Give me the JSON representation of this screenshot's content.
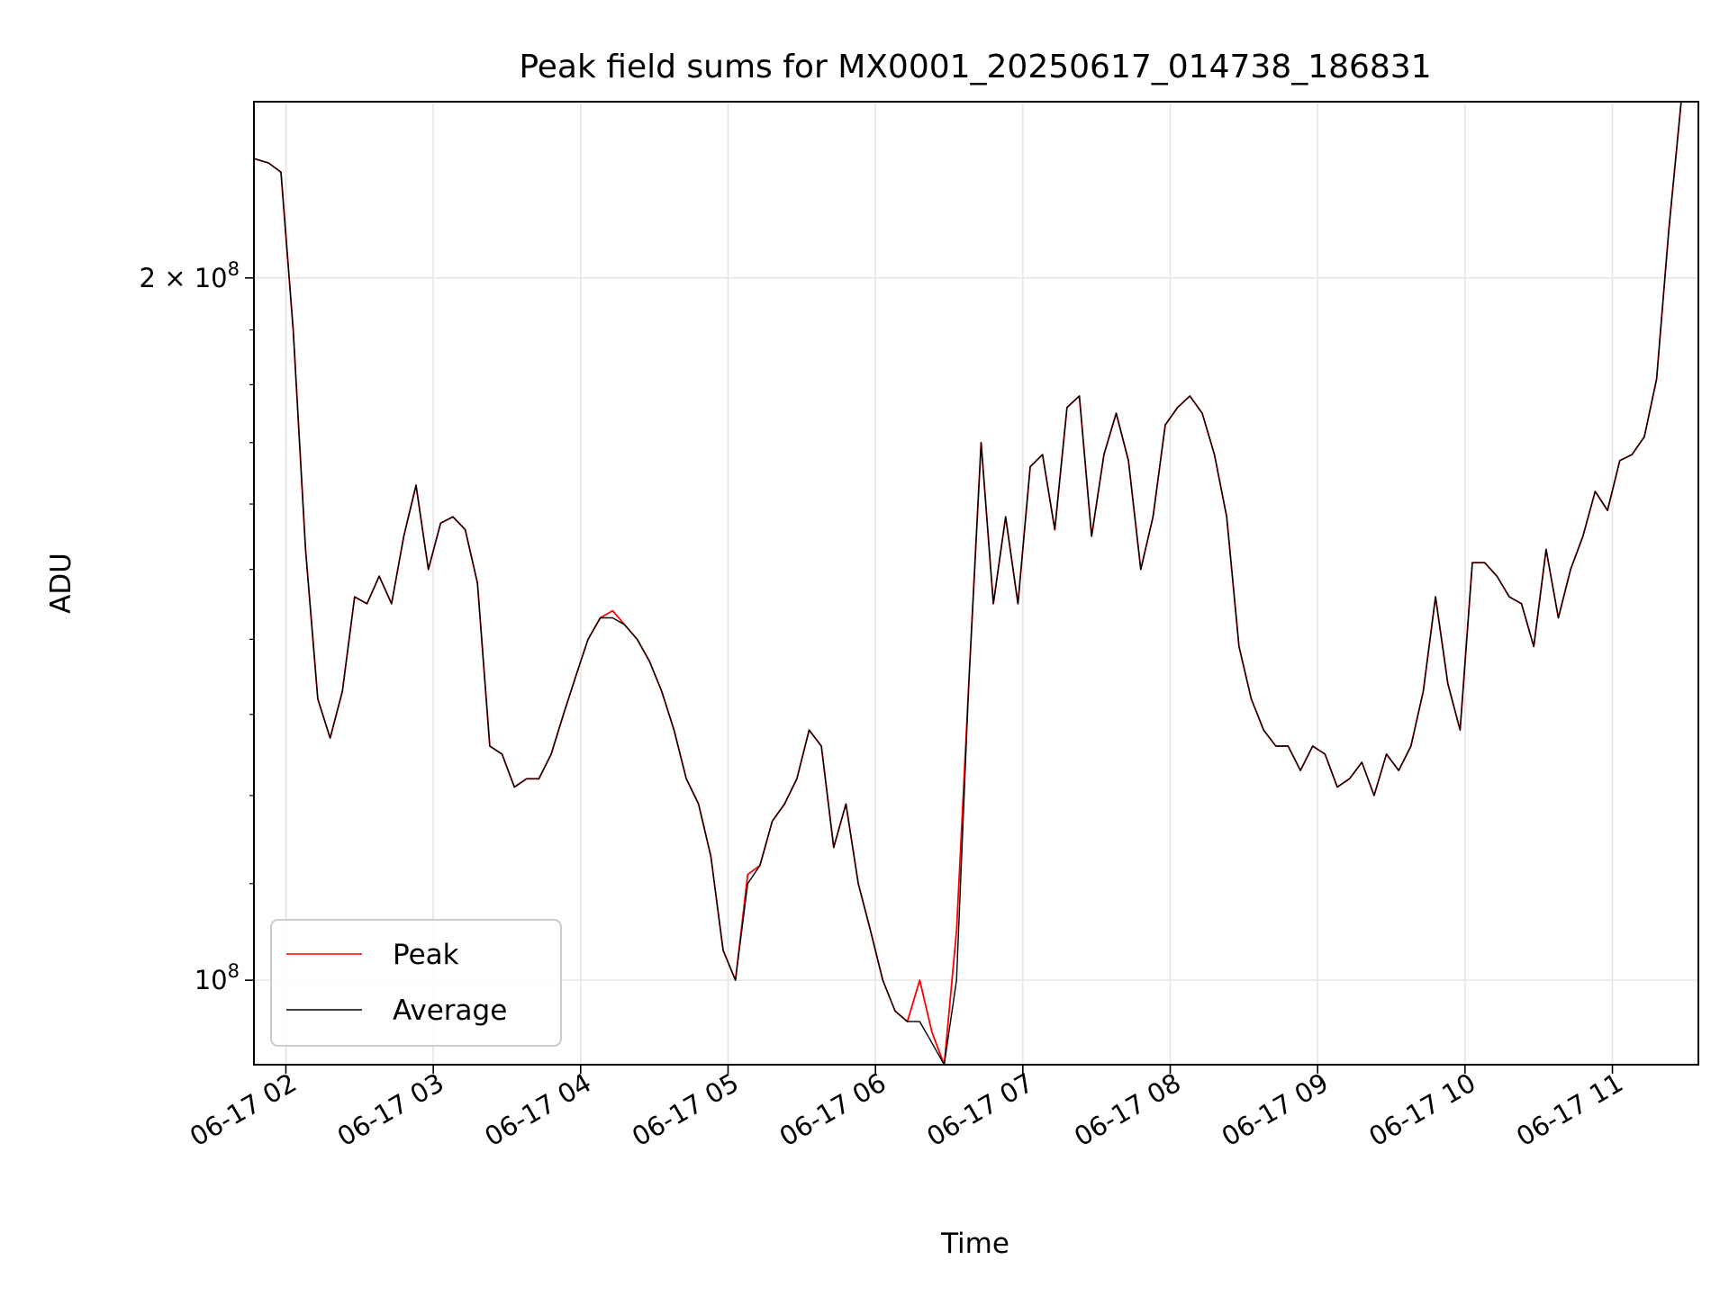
{
  "chart_data": {
    "type": "line",
    "title": "Peak field sums for MX0001_20250617_014738_186831",
    "xlabel": "Time",
    "ylabel": "ADU",
    "yscale": "log",
    "grid": true,
    "legend_placement": "lower-left",
    "xlim": [
      "06-17 01:47",
      "06-17 11:35"
    ],
    "ylim": [
      92000000,
      238000000
    ],
    "x_ticks": [
      "06-17 02",
      "06-17 03",
      "06-17 04",
      "06-17 05",
      "06-17 06",
      "06-17 07",
      "06-17 08",
      "06-17 09",
      "06-17 10",
      "06-17 11"
    ],
    "y_ticks": [
      {
        "value": 200000000,
        "mantissa": "2 × 10",
        "exponent": "8"
      },
      {
        "value": 100000000,
        "mantissa": "10",
        "exponent": "8"
      }
    ],
    "series": [
      {
        "name": "Peak",
        "color": "#ff0000",
        "x": [
          "06-17 01:47",
          "06-17 01:53",
          "06-17 01:58",
          "06-17 02:03",
          "06-17 02:08",
          "06-17 02:13",
          "06-17 02:18",
          "06-17 02:23",
          "06-17 02:28",
          "06-17 02:33",
          "06-17 02:38",
          "06-17 02:43",
          "06-17 02:48",
          "06-17 02:53",
          "06-17 02:58",
          "06-17 03:03",
          "06-17 03:08",
          "06-17 03:13",
          "06-17 03:18",
          "06-17 03:23",
          "06-17 03:28",
          "06-17 03:33",
          "06-17 03:38",
          "06-17 03:43",
          "06-17 03:48",
          "06-17 03:53",
          "06-17 03:58",
          "06-17 04:03",
          "06-17 04:08",
          "06-17 04:13",
          "06-17 04:18",
          "06-17 04:23",
          "06-17 04:28",
          "06-17 04:33",
          "06-17 04:38",
          "06-17 04:43",
          "06-17 04:48",
          "06-17 04:53",
          "06-17 04:58",
          "06-17 05:03",
          "06-17 05:08",
          "06-17 05:13",
          "06-17 05:18",
          "06-17 05:23",
          "06-17 05:28",
          "06-17 05:33",
          "06-17 05:38",
          "06-17 05:43",
          "06-17 05:48",
          "06-17 05:53",
          "06-17 05:58",
          "06-17 06:03",
          "06-17 06:08",
          "06-17 06:13",
          "06-17 06:18",
          "06-17 06:23",
          "06-17 06:28",
          "06-17 06:33",
          "06-17 06:38",
          "06-17 06:43",
          "06-17 06:48",
          "06-17 06:53",
          "06-17 06:58",
          "06-17 07:03",
          "06-17 07:08",
          "06-17 07:13",
          "06-17 07:18",
          "06-17 07:23",
          "06-17 07:28",
          "06-17 07:33",
          "06-17 07:38",
          "06-17 07:43",
          "06-17 07:48",
          "06-17 07:53",
          "06-17 07:58",
          "06-17 08:03",
          "06-17 08:08",
          "06-17 08:13",
          "06-17 08:18",
          "06-17 08:23",
          "06-17 08:28",
          "06-17 08:33",
          "06-17 08:38",
          "06-17 08:43",
          "06-17 08:48",
          "06-17 08:53",
          "06-17 08:58",
          "06-17 09:03",
          "06-17 09:08",
          "06-17 09:13",
          "06-17 09:18",
          "06-17 09:23",
          "06-17 09:28",
          "06-17 09:33",
          "06-17 09:38",
          "06-17 09:43",
          "06-17 09:48",
          "06-17 09:53",
          "06-17 09:58",
          "06-17 10:03",
          "06-17 10:08",
          "06-17 10:13",
          "06-17 10:18",
          "06-17 10:23",
          "06-17 10:28",
          "06-17 10:33",
          "06-17 10:38",
          "06-17 10:43",
          "06-17 10:48",
          "06-17 10:53",
          "06-17 10:58",
          "06-17 11:03",
          "06-17 11:08",
          "06-17 11:13",
          "06-17 11:18",
          "06-17 11:23",
          "06-17 11:28",
          "06-17 11:33"
        ],
        "y": [
          225000000,
          224000000,
          222000000,
          190000000,
          153000000,
          132000000,
          127000000,
          133000000,
          146000000,
          145000000,
          149000000,
          145000000,
          155000000,
          163000000,
          150000000,
          157000000,
          158000000,
          156000000,
          148000000,
          126000000,
          125000000,
          121000000,
          122000000,
          122000000,
          125000000,
          130000000,
          135000000,
          140000000,
          143000000,
          144000000,
          142000000,
          140000000,
          137000000,
          133000000,
          128000000,
          122000000,
          119000000,
          113000000,
          103000000,
          100000000,
          111000000,
          112000000,
          117000000,
          119000000,
          122000000,
          128000000,
          126000000,
          114000000,
          119000000,
          110000000,
          105000000,
          100000000,
          97000000,
          96000000,
          100000000,
          95000000,
          92000000,
          105000000,
          134000000,
          170000000,
          145000000,
          158000000,
          145000000,
          166000000,
          168000000,
          156000000,
          176000000,
          178000000,
          155000000,
          168000000,
          175000000,
          167000000,
          150000000,
          158000000,
          173000000,
          176000000,
          178000000,
          175000000,
          168000000,
          158000000,
          139000000,
          132000000,
          128000000,
          126000000,
          126000000,
          123000000,
          126000000,
          125000000,
          121000000,
          122000000,
          124000000,
          120000000,
          125000000,
          123000000,
          126000000,
          133000000,
          146000000,
          134000000,
          128000000,
          151000000,
          151000000,
          149000000,
          146000000,
          145000000,
          139000000,
          153000000,
          143000000,
          150000000,
          155000000,
          162000000,
          159000000,
          167000000,
          168000000,
          171000000,
          181000000,
          210000000,
          238000000,
          238000000
        ]
      },
      {
        "name": "Average",
        "color": "#000000",
        "x": [
          "06-17 01:47",
          "06-17 01:53",
          "06-17 01:58",
          "06-17 02:03",
          "06-17 02:08",
          "06-17 02:13",
          "06-17 02:18",
          "06-17 02:23",
          "06-17 02:28",
          "06-17 02:33",
          "06-17 02:38",
          "06-17 02:43",
          "06-17 02:48",
          "06-17 02:53",
          "06-17 02:58",
          "06-17 03:03",
          "06-17 03:08",
          "06-17 03:13",
          "06-17 03:18",
          "06-17 03:23",
          "06-17 03:28",
          "06-17 03:33",
          "06-17 03:38",
          "06-17 03:43",
          "06-17 03:48",
          "06-17 03:53",
          "06-17 03:58",
          "06-17 04:03",
          "06-17 04:08",
          "06-17 04:13",
          "06-17 04:18",
          "06-17 04:23",
          "06-17 04:28",
          "06-17 04:33",
          "06-17 04:38",
          "06-17 04:43",
          "06-17 04:48",
          "06-17 04:53",
          "06-17 04:58",
          "06-17 05:03",
          "06-17 05:08",
          "06-17 05:13",
          "06-17 05:18",
          "06-17 05:23",
          "06-17 05:28",
          "06-17 05:33",
          "06-17 05:38",
          "06-17 05:43",
          "06-17 05:48",
          "06-17 05:53",
          "06-17 05:58",
          "06-17 06:03",
          "06-17 06:08",
          "06-17 06:13",
          "06-17 06:18",
          "06-17 06:23",
          "06-17 06:28",
          "06-17 06:33",
          "06-17 06:38",
          "06-17 06:43",
          "06-17 06:48",
          "06-17 06:53",
          "06-17 06:58",
          "06-17 07:03",
          "06-17 07:08",
          "06-17 07:13",
          "06-17 07:18",
          "06-17 07:23",
          "06-17 07:28",
          "06-17 07:33",
          "06-17 07:38",
          "06-17 07:43",
          "06-17 07:48",
          "06-17 07:53",
          "06-17 07:58",
          "06-17 08:03",
          "06-17 08:08",
          "06-17 08:13",
          "06-17 08:18",
          "06-17 08:23",
          "06-17 08:28",
          "06-17 08:33",
          "06-17 08:38",
          "06-17 08:43",
          "06-17 08:48",
          "06-17 08:53",
          "06-17 08:58",
          "06-17 09:03",
          "06-17 09:08",
          "06-17 09:13",
          "06-17 09:18",
          "06-17 09:23",
          "06-17 09:28",
          "06-17 09:33",
          "06-17 09:38",
          "06-17 09:43",
          "06-17 09:48",
          "06-17 09:53",
          "06-17 09:58",
          "06-17 10:03",
          "06-17 10:08",
          "06-17 10:13",
          "06-17 10:18",
          "06-17 10:23",
          "06-17 10:28",
          "06-17 10:33",
          "06-17 10:38",
          "06-17 10:43",
          "06-17 10:48",
          "06-17 10:53",
          "06-17 10:58",
          "06-17 11:03",
          "06-17 11:08",
          "06-17 11:13",
          "06-17 11:18",
          "06-17 11:23",
          "06-17 11:28",
          "06-17 11:33"
        ],
        "y": [
          225000000,
          224000000,
          222000000,
          190000000,
          153000000,
          132000000,
          127000000,
          133000000,
          146000000,
          145000000,
          149000000,
          145000000,
          155000000,
          163000000,
          150000000,
          157000000,
          158000000,
          156000000,
          148000000,
          126000000,
          125000000,
          121000000,
          122000000,
          122000000,
          125000000,
          130000000,
          135000000,
          140000000,
          143000000,
          143000000,
          142000000,
          140000000,
          137000000,
          133000000,
          128000000,
          122000000,
          119000000,
          113000000,
          103000000,
          100000000,
          110000000,
          112000000,
          117000000,
          119000000,
          122000000,
          128000000,
          126000000,
          114000000,
          119000000,
          110000000,
          105000000,
          100000000,
          97000000,
          96000000,
          96000000,
          94000000,
          92000000,
          100000000,
          134000000,
          170000000,
          145000000,
          158000000,
          145000000,
          166000000,
          168000000,
          156000000,
          176000000,
          178000000,
          155000000,
          168000000,
          175000000,
          167000000,
          150000000,
          158000000,
          173000000,
          176000000,
          178000000,
          175000000,
          168000000,
          158000000,
          139000000,
          132000000,
          128000000,
          126000000,
          126000000,
          123000000,
          126000000,
          125000000,
          121000000,
          122000000,
          124000000,
          120000000,
          125000000,
          123000000,
          126000000,
          133000000,
          146000000,
          134000000,
          128000000,
          151000000,
          151000000,
          149000000,
          146000000,
          145000000,
          139000000,
          153000000,
          143000000,
          150000000,
          155000000,
          162000000,
          159000000,
          167000000,
          168000000,
          171000000,
          181000000,
          210000000,
          238000000,
          238000000
        ]
      }
    ]
  }
}
